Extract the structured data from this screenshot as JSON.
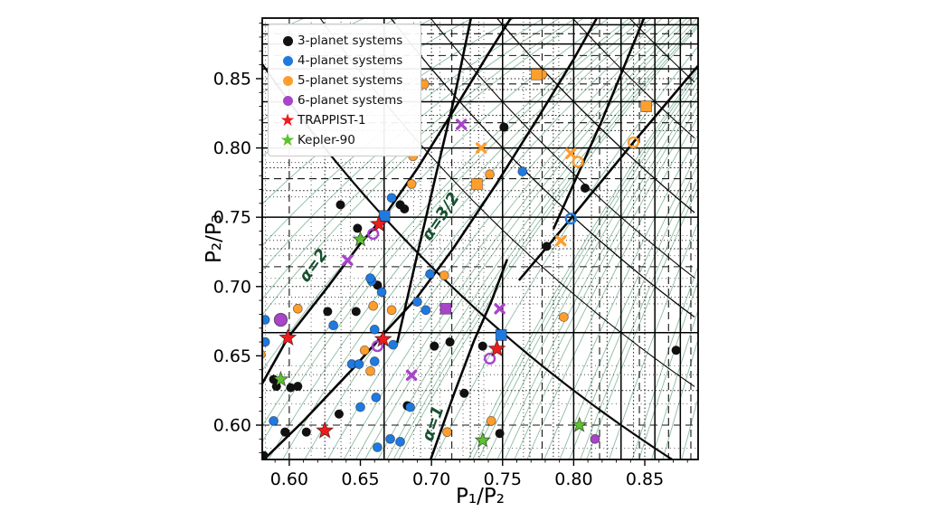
{
  "figure": {
    "background": "#ffffff"
  },
  "axes": {
    "x_label": "P₁/P₂",
    "y_label": "P₂/P₃",
    "x_range": [
      0.581,
      0.8875
    ],
    "y_range": [
      0.5752,
      0.8937
    ],
    "x_tick_values": [
      0.6,
      0.65,
      0.7,
      0.75,
      0.8,
      0.85
    ],
    "x_tick_labels": [
      "0.60",
      "0.65",
      "0.70",
      "0.75",
      "0.80",
      "0.85"
    ],
    "y_tick_values": [
      0.6,
      0.65,
      0.7,
      0.75,
      0.8,
      0.85
    ],
    "y_tick_labels": [
      "0.60",
      "0.65",
      "0.70",
      "0.75",
      "0.80",
      "0.85"
    ],
    "minor_tick_step": 0.01
  },
  "legend": {
    "items": [
      {
        "label": "3-planet systems",
        "color": "#111111",
        "marker": "circle"
      },
      {
        "label": "4-planet systems",
        "color": "#1f7ae0",
        "marker": "circle"
      },
      {
        "label": "5-planet systems",
        "color": "#ff9e2c",
        "marker": "circle"
      },
      {
        "label": "6-planet systems",
        "color": "#a845c8",
        "marker": "circle"
      },
      {
        "label": "TRAPPIST-1",
        "color": "#ee1c1c",
        "marker": "star"
      },
      {
        "label": "Kepler-90",
        "color": "#5cc230",
        "marker": "star"
      }
    ]
  },
  "chart_data": {
    "type": "scatter",
    "title": "",
    "xlabel": "P₁/P₂",
    "ylabel": "P₂/P₃",
    "series": [
      {
        "name": "3-planet systems",
        "color": "#111111",
        "marker": "circle",
        "points": [
          [
            0.582,
            0.578
          ],
          [
            0.597,
            0.595
          ],
          [
            0.612,
            0.595
          ],
          [
            0.589,
            0.633
          ],
          [
            0.591,
            0.628
          ],
          [
            0.601,
            0.627
          ],
          [
            0.606,
            0.628
          ],
          [
            0.635,
            0.608
          ],
          [
            0.627,
            0.682
          ],
          [
            0.647,
            0.682
          ],
          [
            0.662,
            0.701
          ],
          [
            0.636,
            0.759
          ],
          [
            0.648,
            0.742
          ],
          [
            0.678,
            0.759
          ],
          [
            0.681,
            0.756
          ],
          [
            0.702,
            0.657
          ],
          [
            0.713,
            0.66
          ],
          [
            0.736,
            0.657
          ],
          [
            0.723,
            0.623
          ],
          [
            0.683,
            0.614
          ],
          [
            0.748,
            0.594
          ],
          [
            0.751,
            0.815
          ],
          [
            0.781,
            0.729
          ],
          [
            0.808,
            0.771
          ],
          [
            0.872,
            0.654
          ]
        ]
      },
      {
        "name": "4-planet systems",
        "color": "#1f7ae0",
        "marker": "circle",
        "points": [
          [
            0.583,
            0.676
          ],
          [
            0.583,
            0.66
          ],
          [
            0.589,
            0.603
          ],
          [
            0.631,
            0.672
          ],
          [
            0.66,
            0.669
          ],
          [
            0.673,
            0.658
          ],
          [
            0.644,
            0.644
          ],
          [
            0.649,
            0.644
          ],
          [
            0.66,
            0.646
          ],
          [
            0.65,
            0.613
          ],
          [
            0.661,
            0.62
          ],
          [
            0.671,
            0.59
          ],
          [
            0.678,
            0.588
          ],
          [
            0.662,
            0.584
          ],
          [
            0.685,
            0.613
          ],
          [
            0.658,
            0.704
          ],
          [
            0.657,
            0.706
          ],
          [
            0.665,
            0.696
          ],
          [
            0.69,
            0.689
          ],
          [
            0.696,
            0.683
          ],
          [
            0.699,
            0.709
          ],
          [
            0.672,
            0.764
          ],
          [
            0.764,
            0.783
          ]
        ]
      },
      {
        "name": "4-planet open",
        "color": "#1f7ae0",
        "marker": "open-circle",
        "points": [
          [
            0.798,
            0.749
          ]
        ]
      },
      {
        "name": "4-planet square",
        "color": "#1f7ae0",
        "marker": "square",
        "points": [
          [
            0.667,
            0.751
          ],
          [
            0.749,
            0.665
          ]
        ]
      },
      {
        "name": "5-planet systems",
        "color": "#ff9e2c",
        "marker": "circle",
        "points": [
          [
            0.58,
            0.651
          ],
          [
            0.606,
            0.684
          ],
          [
            0.653,
            0.654
          ],
          [
            0.657,
            0.639
          ],
          [
            0.659,
            0.686
          ],
          [
            0.672,
            0.683
          ],
          [
            0.711,
            0.595
          ],
          [
            0.742,
            0.603
          ],
          [
            0.709,
            0.708
          ],
          [
            0.599,
            0.803
          ],
          [
            0.687,
            0.794
          ],
          [
            0.686,
            0.774
          ],
          [
            0.741,
            0.781
          ],
          [
            0.695,
            0.846
          ],
          [
            0.778,
            0.853
          ],
          [
            0.793,
            0.678
          ]
        ]
      },
      {
        "name": "5-planet open",
        "color": "#ff9e2c",
        "marker": "open-circle",
        "points": [
          [
            0.842,
            0.804
          ],
          [
            0.803,
            0.79
          ]
        ]
      },
      {
        "name": "5-planet x",
        "color": "#ff9e2c",
        "marker": "x",
        "points": [
          [
            0.735,
            0.8
          ],
          [
            0.798,
            0.796
          ],
          [
            0.791,
            0.733
          ]
        ]
      },
      {
        "name": "5-planet square",
        "color": "#ff9e2c",
        "marker": "square",
        "points": [
          [
            0.732,
            0.774
          ],
          [
            0.774,
            0.853
          ],
          [
            0.851,
            0.83
          ]
        ]
      },
      {
        "name": "6-planet systems",
        "color": "#a845c8",
        "marker": "circle",
        "points": [
          [
            0.815,
            0.59
          ]
        ]
      },
      {
        "name": "6-planet big",
        "color": "#a845c8",
        "marker": "big-circle",
        "points": [
          [
            0.594,
            0.676
          ]
        ]
      },
      {
        "name": "6-planet open",
        "color": "#a845c8",
        "marker": "open-circle",
        "points": [
          [
            0.662,
            0.657
          ],
          [
            0.741,
            0.648
          ],
          [
            0.659,
            0.738
          ]
        ]
      },
      {
        "name": "6-planet x",
        "color": "#a845c8",
        "marker": "x",
        "points": [
          [
            0.686,
            0.636
          ],
          [
            0.748,
            0.684
          ],
          [
            0.721,
            0.817
          ],
          [
            0.641,
            0.719
          ]
        ]
      },
      {
        "name": "6-planet square",
        "color": "#a845c8",
        "marker": "square",
        "points": [
          [
            0.71,
            0.684
          ]
        ]
      },
      {
        "name": "TRAPPIST-1",
        "color": "#ee1c1c",
        "marker": "star",
        "points": [
          [
            0.599,
            0.663
          ],
          [
            0.666,
            0.662
          ],
          [
            0.625,
            0.596
          ],
          [
            0.663,
            0.745
          ],
          [
            0.746,
            0.655
          ]
        ]
      },
      {
        "name": "Kepler-90",
        "color": "#5cc230",
        "marker": "star",
        "points": [
          [
            0.594,
            0.633
          ],
          [
            0.65,
            0.734
          ],
          [
            0.736,
            0.589
          ],
          [
            0.804,
            0.6
          ]
        ]
      }
    ],
    "resonance_grid": {
      "order1": [
        0.6667,
        0.75,
        0.8,
        0.8333,
        0.8571,
        0.875,
        0.8889
      ],
      "order2": [
        0.6,
        0.7143,
        0.7778,
        0.8182,
        0.8462,
        0.8667,
        0.8824
      ],
      "order3": [
        0.625,
        0.7,
        0.7273,
        0.7692,
        0.7857,
        0.8125,
        0.8235,
        0.8421,
        0.85
      ],
      "order4": [
        0.6364,
        0.6923,
        0.7333,
        0.7647,
        0.7895
      ],
      "order5": [
        0.5833,
        0.6154,
        0.6429,
        0.6875,
        0.7059,
        0.7222,
        0.7368
      ]
    },
    "three_body_curves": {
      "formula": "y=(p+q)/q-p/(q*x)",
      "p_max": 9,
      "q_max": 9,
      "color": "#1e7a46",
      "opacity": 0.5
    },
    "two_body_diagonals": {
      "products": [
        0.5,
        0.5556,
        0.6,
        0.625,
        0.6667,
        0.7143,
        0.75
      ],
      "widths": [
        2.2,
        1.1,
        1.3,
        1.1,
        1.3,
        1.1,
        1.1
      ]
    },
    "thick_lines": [
      {
        "name": "alpha-2-line",
        "pts": [
          [
            0.581,
            0.63
          ],
          [
            0.599,
            0.663
          ],
          [
            0.625,
            0.697
          ],
          [
            0.65,
            0.731
          ],
          [
            0.667,
            0.751
          ],
          [
            0.69,
            0.785
          ],
          [
            0.715,
            0.826
          ],
          [
            0.74,
            0.868
          ],
          [
            0.756,
            0.894
          ]
        ]
      },
      {
        "name": "alpha-32-line",
        "pts": [
          [
            0.578,
            0.571
          ],
          [
            0.61,
            0.603
          ],
          [
            0.645,
            0.641
          ],
          [
            0.67,
            0.67
          ],
          [
            0.689,
            0.691
          ],
          [
            0.715,
            0.727
          ],
          [
            0.745,
            0.773
          ],
          [
            0.775,
            0.822
          ],
          [
            0.8,
            0.864
          ],
          [
            0.817,
            0.895
          ]
        ]
      },
      {
        "name": "alpha-1-line",
        "pts": [
          [
            0.699,
            0.574
          ],
          [
            0.716,
            0.623
          ],
          [
            0.73,
            0.661
          ],
          [
            0.742,
            0.689
          ],
          [
            0.753,
            0.719
          ]
        ]
      },
      {
        "name": "chain-line-4",
        "pts": [
          [
            0.676,
            0.66
          ],
          [
            0.69,
            0.723
          ],
          [
            0.703,
            0.78
          ],
          [
            0.716,
            0.836
          ],
          [
            0.728,
            0.895
          ]
        ]
      },
      {
        "name": "chain-line-5",
        "pts": [
          [
            0.762,
            0.705
          ],
          [
            0.798,
            0.749
          ],
          [
            0.842,
            0.804
          ],
          [
            0.893,
            0.866
          ]
        ]
      },
      {
        "name": "chain-line-6",
        "pts": [
          [
            0.786,
            0.742
          ],
          [
            0.82,
            0.82
          ],
          [
            0.85,
            0.895
          ]
        ]
      }
    ],
    "alpha_labels": [
      {
        "text": "α=2",
        "x": 0.62,
        "y": 0.713,
        "angle": -54,
        "color": "#17502f"
      },
      {
        "text": "α=3/2",
        "x": 0.7095,
        "y": 0.7485,
        "angle": -56,
        "color": "#17502f"
      },
      {
        "text": "α=1",
        "x": 0.7045,
        "y": 0.6,
        "angle": -71,
        "color": "#17502f"
      }
    ]
  }
}
